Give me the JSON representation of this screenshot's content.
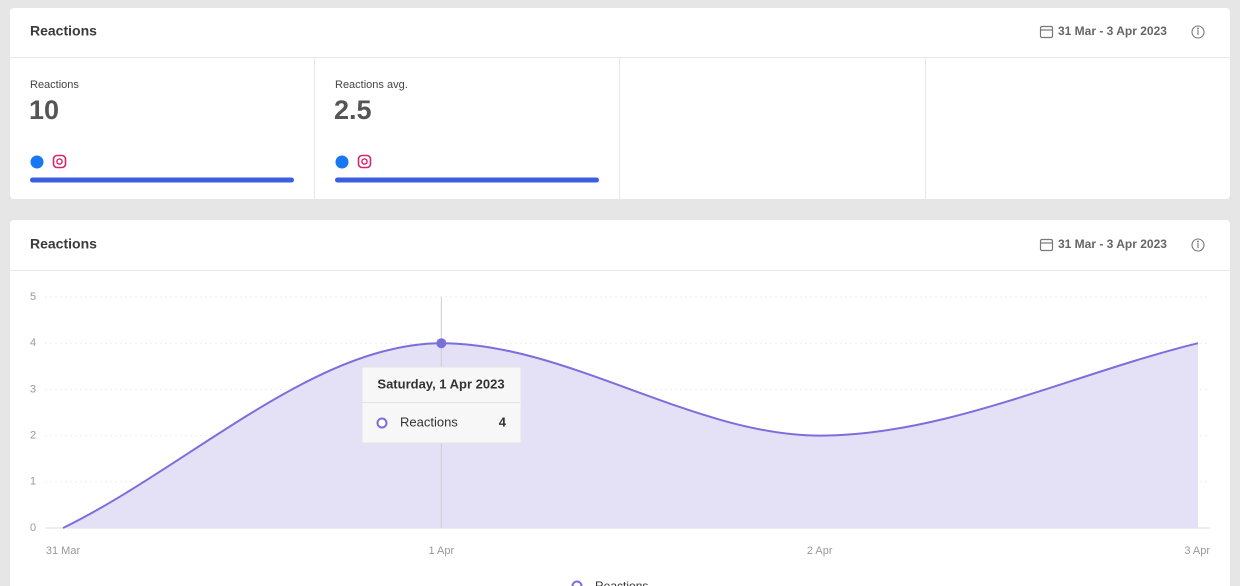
{
  "summary_card": {
    "title": "Reactions",
    "date_range": "31 Mar - 3 Apr 2023",
    "metrics": [
      {
        "label": "Reactions",
        "value": 10
      },
      {
        "label": "Reactions avg.",
        "value": 2.5
      }
    ]
  },
  "chart_card": {
    "title": "Reactions",
    "date_range": "31 Mar - 3 Apr 2023"
  },
  "chart_data": {
    "type": "area",
    "categories": [
      "31 Mar",
      "1 Apr",
      "2 Apr",
      "3 Apr"
    ],
    "series": [
      {
        "name": "Reactions",
        "color": "#7b6fdb",
        "fill": "#e4e1f7",
        "values": [
          0,
          4,
          2,
          4
        ]
      }
    ],
    "ylim": [
      0,
      5
    ],
    "yticks": [
      0,
      1,
      2,
      3,
      4,
      5
    ],
    "grid": true,
    "tooltip": {
      "title": "Saturday, 1 Apr 2023"
    }
  }
}
